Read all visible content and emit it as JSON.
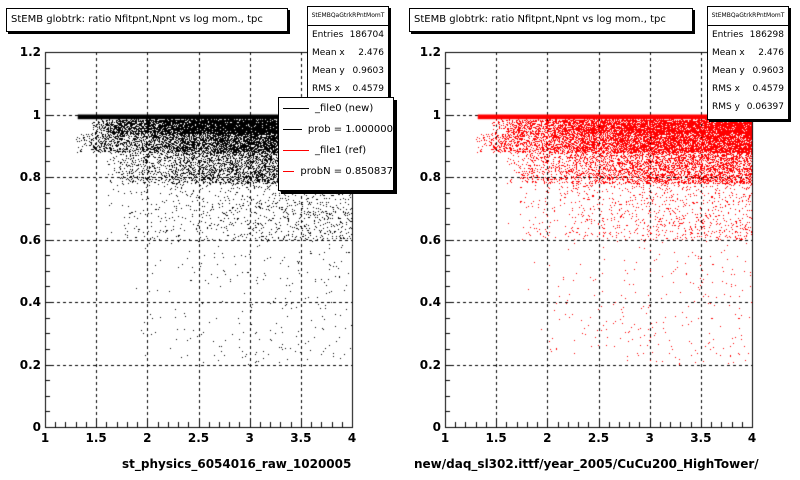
{
  "colors": {
    "left_series": "#000000",
    "right_series": "#ff0000"
  },
  "panels": [
    {
      "title": "StEMB globtrk: ratio Nfitpnt,Npnt vs log mom., tpc",
      "stats": {
        "header": "StEMBQaGtrkRPntMomT",
        "rows": [
          {
            "label": "Entries",
            "value": "186704"
          },
          {
            "label": "Mean x",
            "value": "2.476"
          },
          {
            "label": "Mean y",
            "value": "0.9603"
          },
          {
            "label": "RMS x",
            "value": "0.4579"
          }
        ]
      },
      "xaxis_title": "st_physics_6054016_raw_1020005"
    },
    {
      "title": "StEMB globtrk: ratio Nfitpnt,Npnt vs log mom., tpc",
      "stats": {
        "header": "StEMBQaGtrkRPntMomT",
        "rows": [
          {
            "label": "Entries",
            "value": "186298"
          },
          {
            "label": "Mean x",
            "value": "2.476"
          },
          {
            "label": "Mean y",
            "value": "0.9603"
          },
          {
            "label": "RMS x",
            "value": "0.4579"
          },
          {
            "label": "RMS y",
            "value": "0.06397"
          }
        ]
      },
      "xaxis_title": "new/daq_sl302.ittf/year_2005/CuCu200_HighTower/"
    }
  ],
  "legend": {
    "entries": [
      {
        "label": "_file0 (new)",
        "color": "#000000"
      },
      {
        "label": "prob = 1.000000",
        "color": "#000000"
      },
      {
        "label": "_file1 (ref)",
        "color": "#ff0000"
      },
      {
        "label": "probN = 0.850837",
        "color": "#ff0000"
      }
    ]
  },
  "chart_data": [
    {
      "type": "scatter",
      "title": "StEMB globtrk: ratio Nfitpnt,Npnt vs log mom., tpc",
      "xlabel": "st_physics_6054016_raw_1020005",
      "ylabel": "",
      "xlim": [
        1,
        4
      ],
      "ylim": [
        0,
        1.2
      ],
      "xticks": [
        "1",
        "1.5",
        "2",
        "2.5",
        "3",
        "3.5",
        "4"
      ],
      "yticks": [
        "0",
        "0.2",
        "0.4",
        "0.6",
        "0.8",
        "1",
        "1.2"
      ],
      "grid": true,
      "series": [
        {
          "name": "_file0 (new)",
          "color": "#000000",
          "bands": [
            {
              "y": [
                0.985,
                1.0
              ],
              "x": [
                1.32,
                4.0
              ],
              "density": "solid"
            },
            {
              "y": [
                0.94,
                0.985
              ],
              "x": [
                1.45,
                4.0
              ],
              "density": "high"
            },
            {
              "y": [
                0.88,
                0.94
              ],
              "x": [
                1.3,
                4.0
              ],
              "density": "high"
            },
            {
              "y": [
                0.78,
                0.88
              ],
              "x": [
                1.6,
                4.0
              ],
              "density": "medium"
            },
            {
              "y": [
                0.6,
                0.78
              ],
              "x": [
                1.6,
                4.0
              ],
              "density": "low"
            },
            {
              "y": [
                0.2,
                0.6
              ],
              "x": [
                1.8,
                4.0
              ],
              "density": "sparse"
            }
          ]
        }
      ]
    },
    {
      "type": "scatter",
      "title": "StEMB globtrk: ratio Nfitpnt,Npnt vs log mom., tpc",
      "xlabel": "new/daq_sl302.ittf/year_2005/CuCu200_HighTower/",
      "ylabel": "",
      "xlim": [
        1,
        4
      ],
      "ylim": [
        0,
        1.2
      ],
      "xticks": [
        "1",
        "1.5",
        "2",
        "2.5",
        "3",
        "3.5",
        "4"
      ],
      "yticks": [
        "0",
        "0.2",
        "0.4",
        "0.6",
        "0.8",
        "1",
        "1.2"
      ],
      "grid": true,
      "series": [
        {
          "name": "_file1 (ref)",
          "color": "#ff0000",
          "bands": [
            {
              "y": [
                0.985,
                1.0
              ],
              "x": [
                1.32,
                4.0
              ],
              "density": "solid"
            },
            {
              "y": [
                0.94,
                0.985
              ],
              "x": [
                1.45,
                4.0
              ],
              "density": "high"
            },
            {
              "y": [
                0.88,
                0.94
              ],
              "x": [
                1.3,
                4.0
              ],
              "density": "high"
            },
            {
              "y": [
                0.78,
                0.88
              ],
              "x": [
                1.6,
                4.0
              ],
              "density": "medium"
            },
            {
              "y": [
                0.6,
                0.78
              ],
              "x": [
                1.6,
                4.0
              ],
              "density": "low"
            },
            {
              "y": [
                0.2,
                0.6
              ],
              "x": [
                1.8,
                4.0
              ],
              "density": "sparse"
            }
          ]
        }
      ]
    }
  ]
}
